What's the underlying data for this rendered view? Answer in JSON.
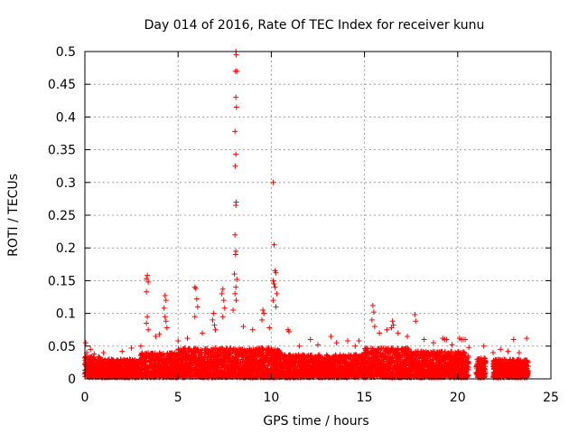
{
  "chart_data": {
    "type": "scatter",
    "title": "Day 014 of 2016, Rate Of TEC Index for receiver kunu",
    "xlabel": "GPS time / hours",
    "ylabel": "ROTI / TECUs",
    "xlim": [
      0,
      25
    ],
    "ylim": [
      0,
      0.5
    ],
    "x_ticks": [
      0,
      5,
      10,
      15,
      20,
      25
    ],
    "x_tick_labels": [
      "0",
      "5",
      "10",
      "15",
      "20",
      "25"
    ],
    "y_ticks": [
      0,
      0.05,
      0.1,
      0.15,
      0.2,
      0.25,
      0.3,
      0.35,
      0.4,
      0.45,
      0.5
    ],
    "y_tick_labels": [
      "0",
      "0.05",
      "0.1",
      "0.15",
      "0.2",
      "0.25",
      "0.3",
      "0.35",
      "0.4",
      "0.45",
      "0.5"
    ],
    "grid": true,
    "marker": "+",
    "series_color": "#ff0000",
    "series": [
      {
        "name": "ROTI",
        "points": [
          [
            8.1,
            0.5
          ],
          [
            8.12,
            0.495
          ],
          [
            8.08,
            0.47
          ],
          [
            8.15,
            0.47
          ],
          [
            8.1,
            0.43
          ],
          [
            8.13,
            0.415
          ],
          [
            8.05,
            0.378
          ],
          [
            8.1,
            0.343
          ],
          [
            8.07,
            0.325
          ],
          [
            8.12,
            0.27
          ],
          [
            8.1,
            0.265
          ],
          [
            8.05,
            0.22
          ],
          [
            8.1,
            0.195
          ],
          [
            8.08,
            0.19
          ],
          [
            8.02,
            0.16
          ],
          [
            8.15,
            0.152
          ],
          [
            8.1,
            0.14
          ],
          [
            8.05,
            0.13
          ],
          [
            8.12,
            0.12
          ],
          [
            7.95,
            0.105
          ],
          [
            10.1,
            0.3
          ],
          [
            10.15,
            0.205
          ],
          [
            10.2,
            0.165
          ],
          [
            10.25,
            0.162
          ],
          [
            10.1,
            0.15
          ],
          [
            10.15,
            0.145
          ],
          [
            10.2,
            0.14
          ],
          [
            10.3,
            0.13
          ],
          [
            10.1,
            0.12
          ],
          [
            10.25,
            0.11
          ],
          [
            3.35,
            0.158
          ],
          [
            3.3,
            0.153
          ],
          [
            3.4,
            0.148
          ],
          [
            3.3,
            0.133
          ],
          [
            3.35,
            0.095
          ],
          [
            3.3,
            0.085
          ],
          [
            3.4,
            0.075
          ],
          [
            4.3,
            0.127
          ],
          [
            4.35,
            0.12
          ],
          [
            4.25,
            0.108
          ],
          [
            4.3,
            0.095
          ],
          [
            4.35,
            0.088
          ],
          [
            4.4,
            0.078
          ],
          [
            5.9,
            0.14
          ],
          [
            5.95,
            0.138
          ],
          [
            6.0,
            0.122
          ],
          [
            6.05,
            0.11
          ],
          [
            5.9,
            0.095
          ],
          [
            7.4,
            0.137
          ],
          [
            7.35,
            0.13
          ],
          [
            7.45,
            0.12
          ],
          [
            7.5,
            0.108
          ],
          [
            7.4,
            0.095
          ],
          [
            9.55,
            0.105
          ],
          [
            9.6,
            0.1
          ],
          [
            9.5,
            0.09
          ],
          [
            6.9,
            0.1
          ],
          [
            6.85,
            0.09
          ],
          [
            6.95,
            0.082
          ],
          [
            15.45,
            0.112
          ],
          [
            15.5,
            0.102
          ],
          [
            15.4,
            0.09
          ],
          [
            15.55,
            0.08
          ],
          [
            16.5,
            0.088
          ],
          [
            16.55,
            0.082
          ],
          [
            16.45,
            0.078
          ],
          [
            17.7,
            0.098
          ],
          [
            17.75,
            0.088
          ],
          [
            10.9,
            0.075
          ],
          [
            10.95,
            0.072
          ],
          [
            12.1,
            0.06
          ],
          [
            13.2,
            0.065
          ],
          [
            14.1,
            0.058
          ],
          [
            14.7,
            0.058
          ],
          [
            19.2,
            0.062
          ],
          [
            19.3,
            0.06
          ],
          [
            19.4,
            0.06
          ],
          [
            20.1,
            0.062
          ],
          [
            20.2,
            0.06
          ],
          [
            20.3,
            0.06
          ],
          [
            20.4,
            0.06
          ],
          [
            21.4,
            0.05
          ],
          [
            22.3,
            0.045
          ],
          [
            23.0,
            0.06
          ],
          [
            23.7,
            0.062
          ],
          [
            0.05,
            0.055
          ],
          [
            0.1,
            0.04
          ],
          [
            0.3,
            0.045
          ],
          [
            0.5,
            0.038
          ],
          [
            1.0,
            0.04
          ],
          [
            2.0,
            0.042
          ],
          [
            2.5,
            0.047
          ],
          [
            3.0,
            0.05
          ],
          [
            3.8,
            0.065
          ],
          [
            4.0,
            0.068
          ],
          [
            5.0,
            0.058
          ],
          [
            5.5,
            0.062
          ],
          [
            6.3,
            0.07
          ],
          [
            7.0,
            0.075
          ],
          [
            8.5,
            0.08
          ],
          [
            9.0,
            0.075
          ],
          [
            9.9,
            0.078
          ],
          [
            11.5,
            0.05
          ],
          [
            12.5,
            0.052
          ],
          [
            13.5,
            0.055
          ],
          [
            14.5,
            0.05
          ],
          [
            15.8,
            0.07
          ],
          [
            16.2,
            0.075
          ],
          [
            16.8,
            0.07
          ],
          [
            17.3,
            0.065
          ],
          [
            18.2,
            0.06
          ],
          [
            18.7,
            0.055
          ],
          [
            19.7,
            0.052
          ],
          [
            20.6,
            0.048
          ],
          [
            21.9,
            0.04
          ],
          [
            22.7,
            0.042
          ],
          [
            23.3,
            0.04
          ]
        ],
        "dense_band": {
          "ranges": [
            [
              0.0,
              0.9,
              0.0,
              0.032
            ],
            [
              0.9,
              3.0,
              0.0,
              0.028
            ],
            [
              3.0,
              5.0,
              0.0,
              0.038
            ],
            [
              5.0,
              10.5,
              0.0,
              0.045
            ],
            [
              10.5,
              12.0,
              0.0,
              0.035
            ],
            [
              12.0,
              15.0,
              0.0,
              0.035
            ],
            [
              15.0,
              17.5,
              0.0,
              0.045
            ],
            [
              17.5,
              20.6,
              0.0,
              0.04
            ],
            [
              21.0,
              21.5,
              0.0,
              0.03
            ],
            [
              21.9,
              23.8,
              0.0,
              0.028
            ]
          ]
        }
      }
    ]
  }
}
